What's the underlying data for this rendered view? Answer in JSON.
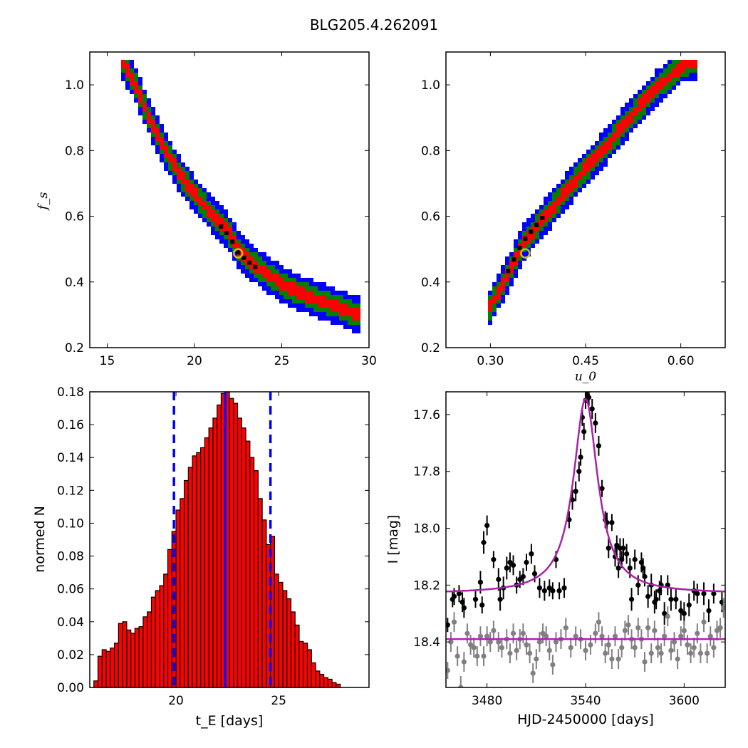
{
  "figure": {
    "title": "BLG205.4.262091"
  },
  "chart_data": [
    {
      "type": "heatmap",
      "panel": "top-left",
      "xlabel": "",
      "ylabel": "f_s",
      "xlim": [
        14,
        30
      ],
      "ylim": [
        0.2,
        1.1
      ],
      "xticks": [
        "15",
        "20",
        "25",
        "30"
      ],
      "yticks": [
        "0.2",
        "0.4",
        "0.6",
        "0.8",
        "1.0"
      ],
      "colors": {
        "outer": "#0000ff",
        "middle": "#008000",
        "inner": "#ff0000",
        "core": "#000000",
        "best": "#c8c800"
      },
      "ridge": [
        [
          15.8,
          1.07
        ],
        [
          16.5,
          1.0
        ],
        [
          17.3,
          0.9
        ],
        [
          18.0,
          0.82
        ],
        [
          19.0,
          0.73
        ],
        [
          20.0,
          0.66
        ],
        [
          21.0,
          0.6
        ],
        [
          22.0,
          0.54
        ],
        [
          22.5,
          0.49
        ],
        [
          23.0,
          0.465
        ],
        [
          24.0,
          0.425
        ],
        [
          25.0,
          0.39
        ],
        [
          26.0,
          0.365
        ],
        [
          27.0,
          0.345
        ],
        [
          28.0,
          0.325
        ],
        [
          29.0,
          0.305
        ],
        [
          29.5,
          0.3
        ]
      ],
      "best_fit": {
        "x": 22.5,
        "y": 0.487
      }
    },
    {
      "type": "heatmap",
      "panel": "top-right",
      "xlabel": "u_0",
      "ylabel": "",
      "xlim": [
        0.23,
        0.67
      ],
      "ylim": [
        0.2,
        1.1
      ],
      "xticks": [
        "0.30",
        "0.45",
        "0.60"
      ],
      "yticks": [
        "0.2",
        "0.4",
        "0.6",
        "0.8",
        "1.0"
      ],
      "colors": {
        "outer": "#0000ff",
        "middle": "#008000",
        "inner": "#ff0000",
        "core": "#000000",
        "best": "#c8c800"
      },
      "ridge": [
        [
          0.29,
          0.3
        ],
        [
          0.31,
          0.37
        ],
        [
          0.33,
          0.44
        ],
        [
          0.35,
          0.52
        ],
        [
          0.38,
          0.59
        ],
        [
          0.41,
          0.66
        ],
        [
          0.44,
          0.73
        ],
        [
          0.47,
          0.79
        ],
        [
          0.5,
          0.86
        ],
        [
          0.53,
          0.93
        ],
        [
          0.56,
          0.99
        ],
        [
          0.6,
          1.06
        ],
        [
          0.62,
          1.07
        ]
      ],
      "best_fit": {
        "x": 0.355,
        "y": 0.487
      }
    },
    {
      "type": "bar",
      "panel": "bottom-left",
      "xlabel": "t_E [days]",
      "ylabel": "normed N",
      "xlim": [
        15.8,
        29.4
      ],
      "ylim": [
        0,
        0.18
      ],
      "xticks": [
        "20",
        "25"
      ],
      "yticks": [
        "0.00",
        "0.02",
        "0.04",
        "0.06",
        "0.08",
        "0.10",
        "0.12",
        "0.14",
        "0.16",
        "0.18"
      ],
      "bin_start": 16.0,
      "bin_width": 0.2,
      "values": [
        0.004,
        0.019,
        0.023,
        0.022,
        0.024,
        0.027,
        0.039,
        0.04,
        0.035,
        0.033,
        0.036,
        0.037,
        0.043,
        0.046,
        0.055,
        0.059,
        0.062,
        0.069,
        0.084,
        0.095,
        0.108,
        0.115,
        0.126,
        0.134,
        0.141,
        0.143,
        0.146,
        0.152,
        0.158,
        0.164,
        0.172,
        0.179,
        0.185,
        0.176,
        0.173,
        0.164,
        0.158,
        0.15,
        0.14,
        0.132,
        0.115,
        0.102,
        0.087,
        0.092,
        0.069,
        0.064,
        0.059,
        0.054,
        0.046,
        0.038,
        0.028,
        0.027,
        0.023,
        0.015,
        0.01,
        0.008,
        0.006,
        0.005,
        0.003,
        0.002
      ],
      "colors": {
        "bar": "#ff0000",
        "edge": "#000000",
        "lines": "#0000ff"
      },
      "vlines": {
        "dashed": [
          19.9,
          24.6
        ],
        "solid": [
          22.4
        ]
      }
    },
    {
      "type": "scatter",
      "panel": "bottom-right",
      "xlabel": "HJD-2450000 [days]",
      "ylabel": "I [mag]",
      "xlim": [
        3455,
        3625
      ],
      "ylim": [
        18.56,
        17.52
      ],
      "xticks": [
        "3480",
        "3540",
        "3600"
      ],
      "yticks": [
        "17.6",
        "17.8",
        "18.0",
        "18.2",
        "18.4"
      ],
      "colors": {
        "model": "#aa22aa",
        "event": "#000000",
        "baseline": "#808080"
      },
      "model": {
        "t0": 3540,
        "base_mag": 18.23,
        "peak_mag": 17.545,
        "width": 9,
        "baseline_mag": 18.39
      },
      "series": [
        {
          "name": "event",
          "x": [
            3456,
            3459,
            3460,
            3463,
            3465,
            3466,
            3473,
            3476,
            3477,
            3478,
            3480,
            3484,
            3487,
            3488,
            3490,
            3492,
            3494,
            3496,
            3498,
            3500,
            3502,
            3504,
            3507,
            3509,
            3512,
            3515,
            3518,
            3520,
            3522,
            3524,
            3527,
            3530,
            3532,
            3534,
            3536,
            3537,
            3538,
            3539,
            3540,
            3541,
            3542,
            3544,
            3546,
            3548,
            3550,
            3552,
            3553,
            3554,
            3556,
            3558,
            3559,
            3560,
            3561,
            3562,
            3563,
            3565,
            3567,
            3568,
            3570,
            3572,
            3574,
            3575,
            3576,
            3578,
            3580,
            3582,
            3583,
            3585,
            3586,
            3588,
            3590,
            3592,
            3595,
            3598,
            3600,
            3603,
            3606,
            3608,
            3612,
            3615,
            3618,
            3623
          ],
          "y": [
            18.34,
            18.25,
            18.24,
            18.23,
            18.26,
            18.28,
            18.25,
            18.19,
            18.27,
            18.05,
            17.99,
            18.11,
            18.18,
            18.25,
            18.21,
            18.14,
            18.12,
            18.13,
            18.2,
            18.18,
            18.17,
            18.12,
            18.09,
            18.16,
            18.21,
            18.22,
            18.21,
            18.22,
            18.11,
            18.22,
            18.21,
            17.97,
            17.9,
            17.87,
            17.8,
            17.75,
            17.61,
            17.66,
            17.55,
            17.53,
            17.54,
            17.58,
            17.63,
            17.71,
            17.86,
            17.97,
            17.98,
            18.07,
            17.98,
            18.1,
            18.06,
            18.14,
            18.07,
            18.11,
            18.07,
            18.09,
            18.14,
            18.25,
            18.11,
            18.2,
            18.12,
            18.14,
            18.17,
            18.24,
            18.2,
            18.26,
            18.25,
            18.22,
            18.2,
            18.3,
            18.2,
            18.25,
            18.25,
            18.29,
            18.3,
            18.27,
            18.22,
            18.23,
            18.23,
            18.29,
            18.23,
            18.26
          ],
          "err": [
            0.025,
            0.028,
            0.03,
            0.03,
            0.035,
            0.035,
            0.03,
            0.04,
            0.03,
            0.04,
            0.035,
            0.03,
            0.04,
            0.04,
            0.04,
            0.04,
            0.035,
            0.035,
            0.03,
            0.03,
            0.03,
            0.03,
            0.035,
            0.03,
            0.035,
            0.035,
            0.03,
            0.03,
            0.03,
            0.03,
            0.035,
            0.03,
            0.035,
            0.035,
            0.035,
            0.03,
            0.03,
            0.03,
            0.03,
            0.03,
            0.03,
            0.035,
            0.035,
            0.035,
            0.03,
            0.03,
            0.035,
            0.035,
            0.03,
            0.035,
            0.035,
            0.035,
            0.035,
            0.03,
            0.035,
            0.035,
            0.035,
            0.04,
            0.035,
            0.035,
            0.035,
            0.035,
            0.035,
            0.04,
            0.04,
            0.04,
            0.035,
            0.035,
            0.035,
            0.04,
            0.035,
            0.04,
            0.035,
            0.035,
            0.04,
            0.04,
            0.035,
            0.035,
            0.04,
            0.04,
            0.035,
            0.035
          ]
        },
        {
          "name": "baseline",
          "x": [
            3456,
            3458,
            3460,
            3462,
            3464,
            3466,
            3468,
            3470,
            3472,
            3474,
            3476,
            3478,
            3480,
            3482,
            3484,
            3487,
            3489,
            3492,
            3494,
            3496,
            3498,
            3500,
            3502,
            3504,
            3506,
            3508,
            3510,
            3512,
            3514,
            3516,
            3518,
            3520,
            3522,
            3525,
            3528,
            3531,
            3534,
            3537,
            3540,
            3543,
            3546,
            3548,
            3550,
            3552,
            3554,
            3556,
            3558,
            3560,
            3562,
            3564,
            3566,
            3568,
            3570,
            3572,
            3574,
            3576,
            3578,
            3580,
            3582,
            3584,
            3586,
            3588,
            3590,
            3592,
            3594,
            3596,
            3598,
            3600,
            3602,
            3604,
            3606,
            3608,
            3610,
            3612,
            3614,
            3616,
            3618,
            3620,
            3622,
            3624
          ],
          "y": [
            18.5,
            18.4,
            18.33,
            18.45,
            18.56,
            18.47,
            18.37,
            18.41,
            18.42,
            18.45,
            18.38,
            18.45,
            18.38,
            18.4,
            18.36,
            18.4,
            18.42,
            18.39,
            18.44,
            18.37,
            18.43,
            18.39,
            18.37,
            18.41,
            18.44,
            18.51,
            18.46,
            18.4,
            18.37,
            18.38,
            18.43,
            18.48,
            18.4,
            18.39,
            18.35,
            18.42,
            18.38,
            18.39,
            18.43,
            18.41,
            18.37,
            18.33,
            18.38,
            18.44,
            18.41,
            18.46,
            18.38,
            18.46,
            18.42,
            18.36,
            18.34,
            18.39,
            18.42,
            18.35,
            18.39,
            18.47,
            18.35,
            18.44,
            18.36,
            18.42,
            18.44,
            18.38,
            18.31,
            18.43,
            18.4,
            18.46,
            18.38,
            18.36,
            18.41,
            18.44,
            18.42,
            18.37,
            18.44,
            18.33,
            18.44,
            18.38,
            18.42,
            18.36,
            18.35,
            18.28
          ],
          "err": [
            0.03,
            0.035,
            0.035,
            0.035,
            0.04,
            0.035,
            0.035,
            0.035,
            0.035,
            0.035,
            0.035,
            0.035,
            0.035,
            0.035,
            0.035,
            0.035,
            0.035,
            0.035,
            0.035,
            0.035,
            0.035,
            0.035,
            0.035,
            0.035,
            0.035,
            0.035,
            0.035,
            0.035,
            0.035,
            0.035,
            0.035,
            0.035,
            0.035,
            0.035,
            0.035,
            0.035,
            0.035,
            0.035,
            0.035,
            0.035,
            0.035,
            0.035,
            0.035,
            0.035,
            0.035,
            0.035,
            0.035,
            0.035,
            0.035,
            0.035,
            0.035,
            0.035,
            0.035,
            0.035,
            0.035,
            0.035,
            0.035,
            0.035,
            0.035,
            0.035,
            0.035,
            0.035,
            0.035,
            0.035,
            0.035,
            0.035,
            0.035,
            0.035,
            0.035,
            0.035,
            0.035,
            0.035,
            0.035,
            0.035,
            0.035,
            0.035,
            0.035,
            0.035,
            0.035,
            0.035
          ]
        }
      ]
    }
  ]
}
